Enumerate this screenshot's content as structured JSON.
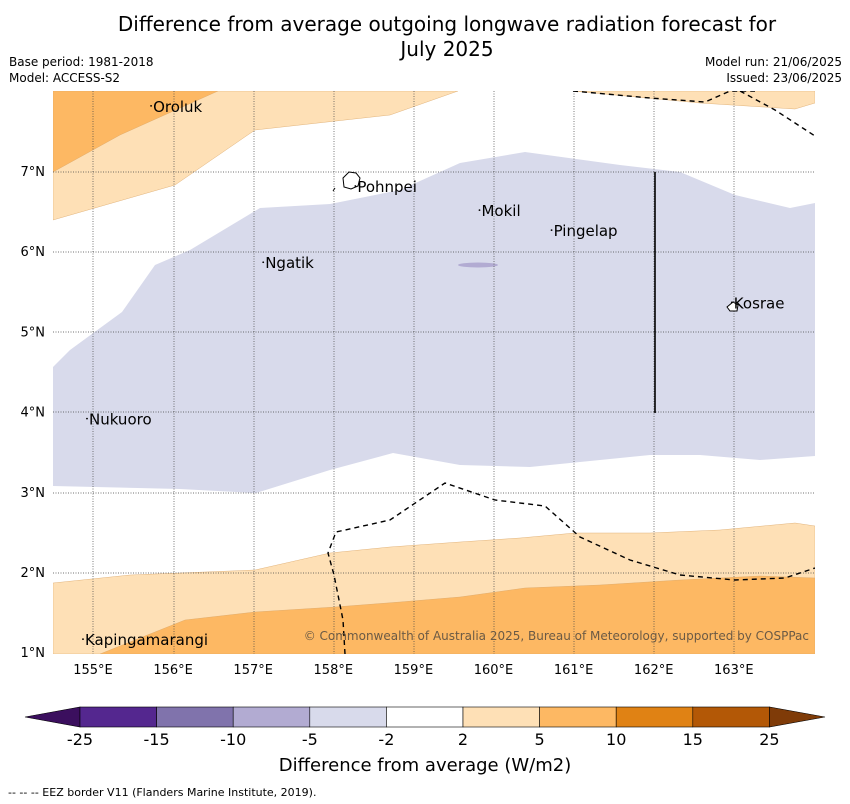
{
  "title_line1": "Difference from average outgoing longwave radiation forecast for",
  "title_line2": "July 2025",
  "base_period": "Base period: 1981-2018",
  "model": "Model: ACCESS-S2",
  "model_run": "Model run: 21/06/2025",
  "issued": "Issued: 23/06/2025",
  "copyright": "© Commonwealth of Australia 2025, Bureau of Meteorology, supported by COSPPac",
  "footnote": "--  --  -- EEZ border V11 (Flanders Marine Institute, 2019).",
  "map": {
    "lon_ticks": [
      "155°E",
      "156°E",
      "157°E",
      "158°E",
      "159°E",
      "160°E",
      "161°E",
      "162°E",
      "163°E"
    ],
    "lat_ticks": [
      "7°N",
      "6°N",
      "5°N",
      "4°N",
      "3°N",
      "2°N",
      "1°N"
    ],
    "places": [
      {
        "name": "Oroluk",
        "lon": 155.75,
        "lat": 7.75
      },
      {
        "name": "Pohnpei",
        "lon": 158.3,
        "lat": 6.75
      },
      {
        "name": "Mokil",
        "lon": 159.85,
        "lat": 6.45
      },
      {
        "name": "Pingelap",
        "lon": 160.75,
        "lat": 6.2
      },
      {
        "name": "Ngatik",
        "lon": 157.15,
        "lat": 5.8
      },
      {
        "name": "Kosrae",
        "lon": 163.0,
        "lat": 5.3
      },
      {
        "name": "Nukuoro",
        "lon": 154.95,
        "lat": 3.85
      },
      {
        "name": "Kapingamarangi",
        "lon": 154.9,
        "lat": 1.1
      }
    ]
  },
  "colorbar": {
    "label": "Difference from average (W/m2)",
    "ticks": [
      "-25",
      "-15",
      "-10",
      "-5",
      "-2",
      "2",
      "5",
      "10",
      "15",
      "25"
    ],
    "colors": [
      "#3b0f5e",
      "#54278f",
      "#8073ac",
      "#b2abd2",
      "#d8daeb",
      "#ffffff",
      "#fee0b6",
      "#fdb863",
      "#e08214",
      "#b35806",
      "#7f3b08"
    ]
  }
}
